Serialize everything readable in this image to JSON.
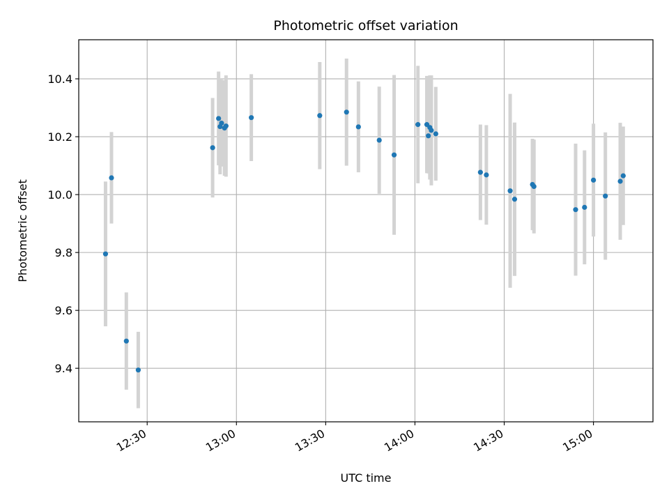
{
  "chart_data": {
    "type": "scatter",
    "title": "Photometric offset variation",
    "xlabel": "UTC time",
    "ylabel": "Photometric offset",
    "x_ticks": [
      "12:30",
      "13:00",
      "13:30",
      "14:00",
      "14:30",
      "15:00"
    ],
    "y_ticks": [
      "9.4",
      "9.6",
      "9.8",
      "10.0",
      "10.2",
      "10.4"
    ],
    "xlim": [
      "12:07",
      "15:20"
    ],
    "ylim": [
      9.215,
      10.535
    ],
    "grid": true,
    "colors": {
      "point": "#1f77b4",
      "errorbar": "#d3d3d3",
      "grid": "#b0b0b0"
    },
    "points": [
      {
        "t": "12:16",
        "y": 9.795,
        "err": 0.25
      },
      {
        "t": "12:18",
        "y": 10.058,
        "err": 0.158
      },
      {
        "t": "12:23",
        "y": 9.494,
        "err": 0.168
      },
      {
        "t": "12:27",
        "y": 9.394,
        "err": 0.132
      },
      {
        "t": "12:52",
        "y": 10.162,
        "err": 0.172
      },
      {
        "t": "12:54",
        "y": 10.263,
        "err": 0.162
      },
      {
        "t": "12:54.5",
        "y": 10.235,
        "err": 0.165
      },
      {
        "t": "12:55",
        "y": 10.247,
        "err": 0.15
      },
      {
        "t": "12:56",
        "y": 10.23,
        "err": 0.165
      },
      {
        "t": "12:56.5",
        "y": 10.237,
        "err": 0.175
      },
      {
        "t": "13:05",
        "y": 10.266,
        "err": 0.15
      },
      {
        "t": "13:28",
        "y": 10.273,
        "err": 0.185
      },
      {
        "t": "13:37",
        "y": 10.285,
        "err": 0.185
      },
      {
        "t": "13:41",
        "y": 10.234,
        "err": 0.157
      },
      {
        "t": "13:48",
        "y": 10.188,
        "err": 0.185
      },
      {
        "t": "13:53",
        "y": 10.137,
        "err": 0.276
      },
      {
        "t": "14:01",
        "y": 10.242,
        "err": 0.203
      },
      {
        "t": "14:04",
        "y": 10.242,
        "err": 0.168
      },
      {
        "t": "14:04.5",
        "y": 10.203,
        "err": 0.13
      },
      {
        "t": "14:05",
        "y": 10.232,
        "err": 0.18
      },
      {
        "t": "14:05.5",
        "y": 10.222,
        "err": 0.19
      },
      {
        "t": "14:07",
        "y": 10.21,
        "err": 0.162
      },
      {
        "t": "14:22",
        "y": 10.077,
        "err": 0.165
      },
      {
        "t": "14:24",
        "y": 10.068,
        "err": 0.172
      },
      {
        "t": "14:32",
        "y": 10.013,
        "err": 0.335
      },
      {
        "t": "14:33.5",
        "y": 9.984,
        "err": 0.265
      },
      {
        "t": "14:39.5",
        "y": 10.035,
        "err": 0.158
      },
      {
        "t": "14:40",
        "y": 10.028,
        "err": 0.162
      },
      {
        "t": "14:54",
        "y": 9.948,
        "err": 0.228
      },
      {
        "t": "14:57",
        "y": 9.956,
        "err": 0.197
      },
      {
        "t": "15:00",
        "y": 10.05,
        "err": 0.195
      },
      {
        "t": "15:04",
        "y": 9.995,
        "err": 0.22
      },
      {
        "t": "15:09",
        "y": 10.046,
        "err": 0.202
      },
      {
        "t": "15:10",
        "y": 10.065,
        "err": 0.17
      }
    ]
  }
}
